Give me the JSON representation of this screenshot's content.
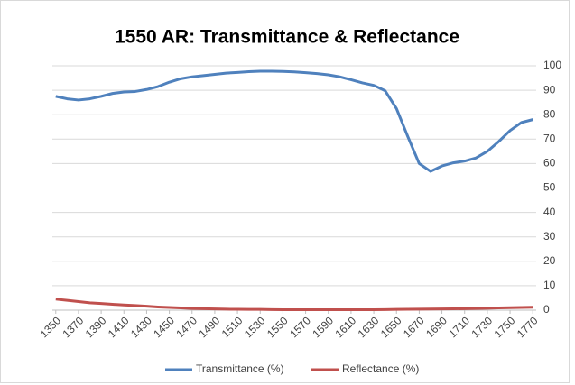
{
  "chart_data": {
    "type": "line",
    "title": "1550 AR: Transmittance & Reflectance",
    "x": [
      1350,
      1360,
      1370,
      1380,
      1390,
      1400,
      1410,
      1420,
      1430,
      1440,
      1450,
      1460,
      1470,
      1480,
      1490,
      1500,
      1510,
      1520,
      1530,
      1540,
      1550,
      1560,
      1570,
      1580,
      1590,
      1600,
      1610,
      1620,
      1630,
      1640,
      1650,
      1660,
      1670,
      1680,
      1690,
      1700,
      1710,
      1720,
      1730,
      1740,
      1750,
      1760,
      1770
    ],
    "series": [
      {
        "name": "Transmittance (%)",
        "color": "#4f81bd",
        "values": [
          87.5,
          86.5,
          86,
          86.5,
          87.5,
          88.7,
          89.3,
          89.5,
          90.3,
          91.5,
          93.3,
          94.7,
          95.5,
          96,
          96.5,
          97,
          97.3,
          97.6,
          97.8,
          97.8,
          97.7,
          97.5,
          97.2,
          96.8,
          96.3,
          95.5,
          94.3,
          93,
          92,
          89.8,
          82.5,
          71,
          60,
          56.8,
          59,
          60.3,
          61,
          62.3,
          65,
          69,
          73.5,
          76.8,
          78
        ]
      },
      {
        "name": "Reflectance (%)",
        "color": "#c0504d",
        "values": [
          4.5,
          4.0,
          3.5,
          3.0,
          2.7,
          2.4,
          2.1,
          1.9,
          1.6,
          1.3,
          1.1,
          0.9,
          0.7,
          0.6,
          0.5,
          0.4,
          0.35,
          0.3,
          0.3,
          0.25,
          0.2,
          0.2,
          0.2,
          0.2,
          0.2,
          0.2,
          0.2,
          0.2,
          0.2,
          0.25,
          0.3,
          0.35,
          0.4,
          0.45,
          0.5,
          0.55,
          0.6,
          0.7,
          0.8,
          0.9,
          1.0,
          1.1,
          1.2
        ]
      }
    ],
    "xlim": [
      1347,
      1773
    ],
    "xticks": [
      1350,
      1370,
      1390,
      1410,
      1430,
      1450,
      1470,
      1490,
      1510,
      1530,
      1550,
      1570,
      1590,
      1610,
      1630,
      1650,
      1670,
      1690,
      1710,
      1730,
      1750,
      1770
    ],
    "ylim": [
      0,
      100
    ],
    "yticks": [
      0,
      10,
      20,
      30,
      40,
      50,
      60,
      70,
      80,
      90,
      100
    ],
    "grid": true,
    "y_axis_side": "right",
    "legend": "bottom"
  }
}
